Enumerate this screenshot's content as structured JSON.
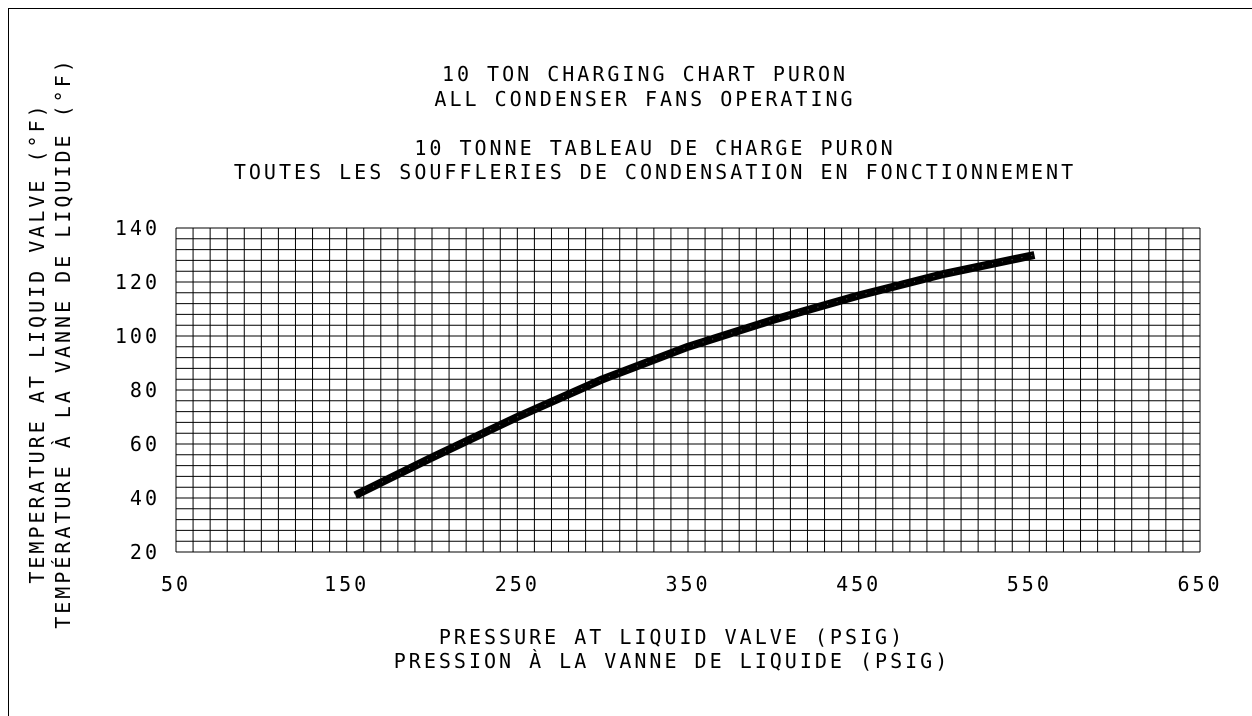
{
  "chart_data": {
    "type": "line",
    "title": [
      "10 TON CHARGING CHART PURON",
      "ALL CONDENSER FANS OPERATING",
      "10 TONNE TABLEAU DE CHARGE PURON",
      "TOUTES LES SOUFFLERIES DE CONDENSATION EN FONCTIONNEMENT"
    ],
    "xlabel": [
      "PRESSURE AT LIQUID VALVE (PSIG)",
      "PRESSION À LA VANNE DE LIQUIDE (PSIG)"
    ],
    "ylabel": [
      "TEMPERATURE AT LIQUID VALVE (°F)",
      "TEMPÉRATURE À LA VANNE DE LIQUIDE (°F)"
    ],
    "xlim": [
      50,
      650
    ],
    "ylim": [
      20,
      140
    ],
    "x_ticks": [
      "50",
      "150",
      "250",
      "350",
      "450",
      "550",
      "650"
    ],
    "y_ticks": [
      "20",
      "40",
      "60",
      "80",
      "100",
      "120",
      "140"
    ],
    "x_minor_step": 10,
    "y_minor_step": 4,
    "grid": true,
    "series": [
      {
        "color": "#000000",
        "x": [
          155,
          200,
          250,
          300,
          350,
          400,
          450,
          500,
          553
        ],
        "y": [
          41,
          55,
          70,
          84,
          96,
          106,
          115,
          123,
          130
        ]
      }
    ]
  }
}
